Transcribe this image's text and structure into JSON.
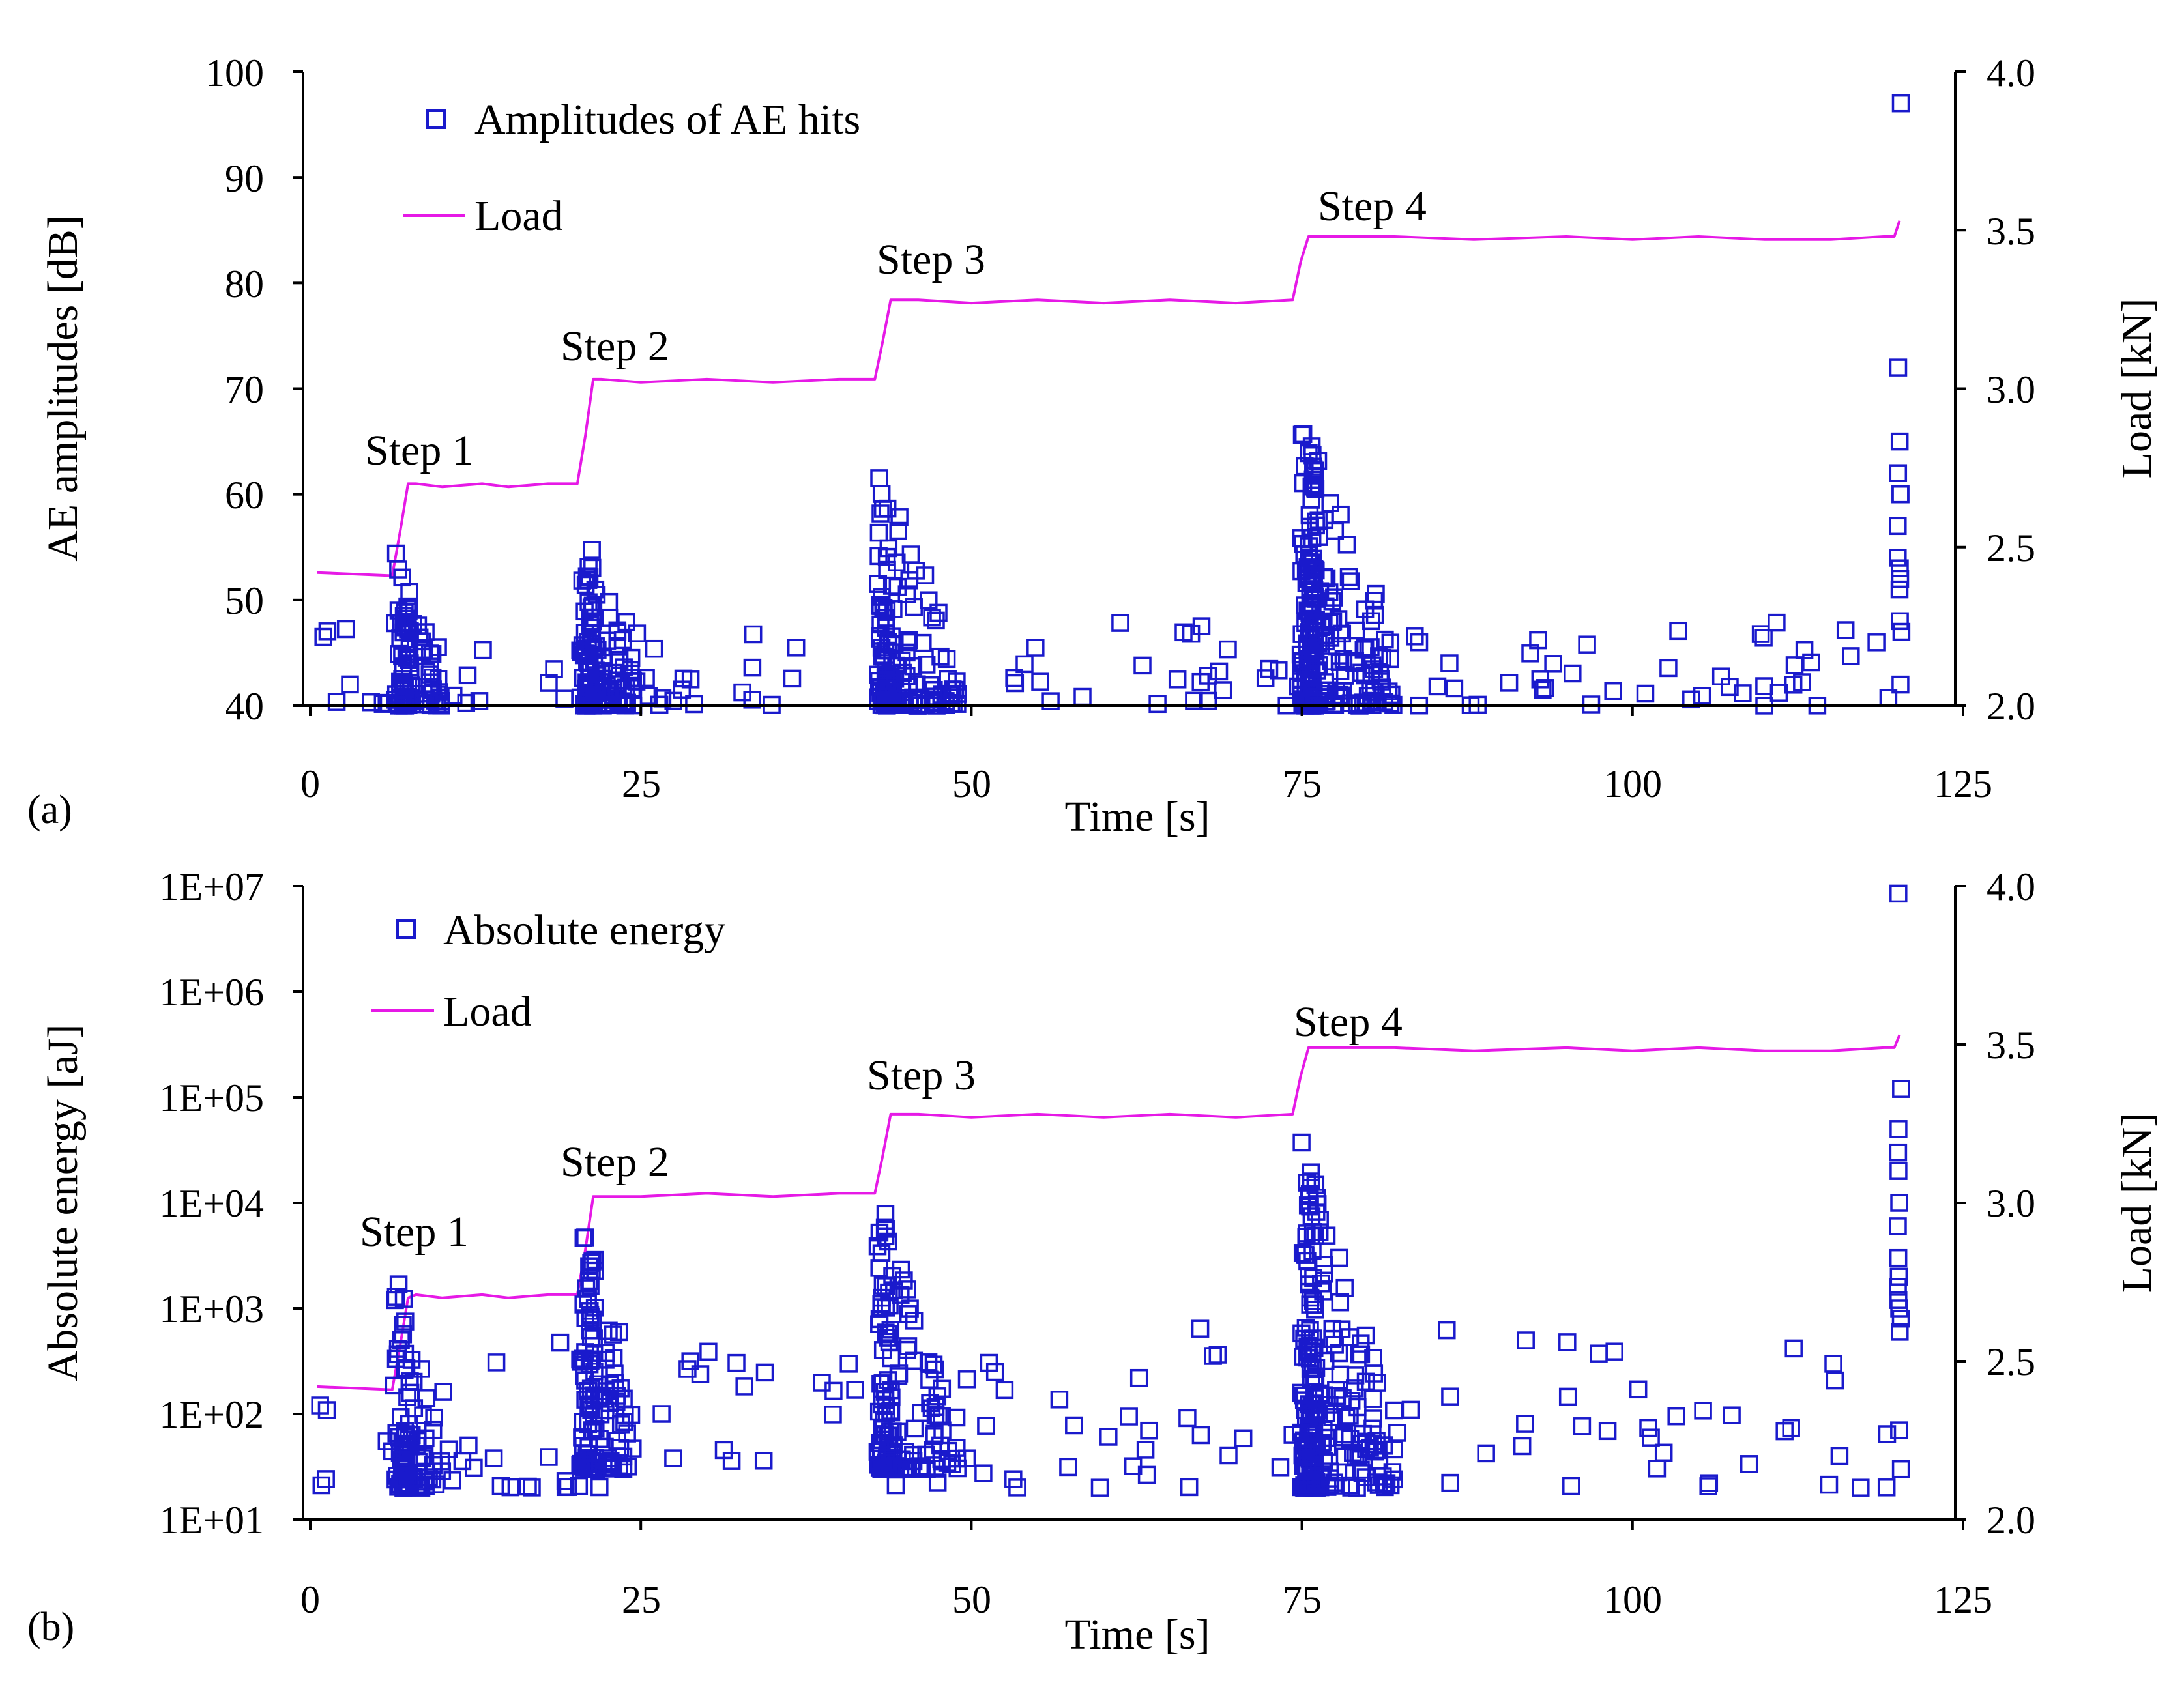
{
  "colors": {
    "marker": "#1a1acc",
    "load": "#e619e6",
    "axis": "#000000"
  },
  "chart_data": [
    {
      "type": "scatter",
      "panel_label": "(a)",
      "xlabel": "Time [s]",
      "ylabel": "AE amplitudes [dB]",
      "y2label": "Load [kN]",
      "xlim": [
        0,
        125
      ],
      "ylim": [
        40,
        100
      ],
      "y2lim": [
        2.0,
        4.0
      ],
      "yscale": "linear",
      "xticks": [
        "0",
        "25",
        "50",
        "75",
        "100",
        "125"
      ],
      "yticks": [
        "40",
        "50",
        "60",
        "70",
        "80",
        "90",
        "100"
      ],
      "y2ticks": [
        "2.0",
        "2.5",
        "3.0",
        "3.5",
        "4.0"
      ],
      "legend": [
        {
          "kind": "marker",
          "label": "Amplitudes of AE hits"
        },
        {
          "kind": "line",
          "label": "Load"
        }
      ],
      "annotations": [
        {
          "text": "Step 1",
          "x": 8.5,
          "y": 2.79
        },
        {
          "text": "Step 2",
          "x": 18.5,
          "y": 3.09
        },
        {
          "text": "Step 3",
          "x": 42,
          "y": 3.36
        },
        {
          "text": "Step 4",
          "x": 76.5,
          "y": 3.53
        }
      ],
      "load_series": {
        "name": "Load",
        "x": [
          0.5,
          6.2,
          6.8,
          7.4,
          8,
          10,
          13,
          15,
          18,
          20.2,
          20.8,
          21.4,
          22,
          25,
          30,
          35,
          40,
          42.7,
          43.3,
          43.9,
          46,
          50,
          55,
          60,
          65,
          70,
          74.3,
          74.9,
          75.5,
          78,
          82,
          88,
          95,
          100,
          105,
          110,
          115,
          119,
          119.8,
          120.2
        ],
        "y": [
          2.42,
          2.41,
          2.55,
          2.7,
          2.7,
          2.69,
          2.7,
          2.69,
          2.7,
          2.7,
          2.85,
          3.03,
          3.03,
          3.02,
          3.03,
          3.02,
          3.03,
          3.03,
          3.15,
          3.28,
          3.28,
          3.27,
          3.28,
          3.27,
          3.28,
          3.27,
          3.28,
          3.4,
          3.48,
          3.48,
          3.48,
          3.47,
          3.48,
          3.47,
          3.48,
          3.47,
          3.47,
          3.48,
          3.48,
          3.53
        ]
      },
      "hits": [
        {
          "name": "cluster_step1",
          "t_start": 6.0,
          "t_peak": 7.0,
          "t_end": 10.0,
          "count": 90,
          "y_base": 40,
          "y_peak": 53
        },
        {
          "name": "cluster_step2",
          "t_start": 20.0,
          "t_peak": 21.0,
          "t_end": 24.5,
          "count": 120,
          "y_base": 40,
          "y_peak": 56
        },
        {
          "name": "cluster_step3",
          "t_start": 42.5,
          "t_peak": 43.5,
          "t_end": 49.0,
          "count": 140,
          "y_base": 40,
          "y_peak": 61
        },
        {
          "name": "cluster_step4",
          "t_start": 74.5,
          "t_peak": 75.5,
          "t_end": 82.0,
          "count": 220,
          "y_base": 40,
          "y_peak": 66
        },
        {
          "name": "scatter_background",
          "t_start": 0.5,
          "t_end": 119.5,
          "count": 130,
          "y_min": 40,
          "y_max": 48
        },
        {
          "name": "failure_column",
          "t": 120.2,
          "values": [
            97,
            72,
            65,
            62,
            60,
            60,
            57,
            54,
            53,
            52,
            51,
            48,
            47,
            42
          ]
        }
      ]
    },
    {
      "type": "scatter",
      "panel_label": "(b)",
      "xlabel": "Time [s]",
      "ylabel": "Absolute energy [aJ]",
      "y2label": "Load [kN]",
      "xlim": [
        0,
        125
      ],
      "ylim": [
        10,
        10000000
      ],
      "y2lim": [
        2.0,
        4.0
      ],
      "yscale": "log",
      "xticks": [
        "0",
        "25",
        "50",
        "75",
        "100",
        "125"
      ],
      "yticks": [
        "1E+01",
        "1E+02",
        "1E+03",
        "1E+04",
        "1E+05",
        "1E+06",
        "1E+07"
      ],
      "y2ticks": [
        "2.0",
        "2.5",
        "3.0",
        "3.5",
        "4.0"
      ],
      "legend": [
        {
          "kind": "marker",
          "label": "Absolute energy"
        },
        {
          "kind": "line",
          "label": "Load"
        }
      ],
      "annotations": [
        {
          "text": "Step 1",
          "x": 8.0,
          "y": 2.82
        },
        {
          "text": "Step 2",
          "x": 18.0,
          "y": 3.09
        },
        {
          "text": "Step 3",
          "x": 41.0,
          "y": 3.36
        },
        {
          "text": "Step 4",
          "x": 74.5,
          "y": 3.53
        }
      ],
      "load_series": {
        "name": "Load",
        "x": [
          0.5,
          6.2,
          6.8,
          7.4,
          8,
          10,
          13,
          15,
          18,
          20.2,
          20.8,
          21.4,
          22,
          25,
          30,
          35,
          40,
          42.7,
          43.3,
          43.9,
          46,
          50,
          55,
          60,
          65,
          70,
          74.3,
          74.9,
          75.5,
          78,
          82,
          88,
          95,
          100,
          105,
          110,
          115,
          119,
          119.8,
          120.2
        ],
        "y": [
          2.42,
          2.41,
          2.55,
          2.7,
          2.71,
          2.7,
          2.71,
          2.7,
          2.71,
          2.71,
          2.85,
          3.02,
          3.02,
          3.02,
          3.03,
          3.02,
          3.03,
          3.03,
          3.15,
          3.28,
          3.28,
          3.27,
          3.28,
          3.27,
          3.28,
          3.27,
          3.28,
          3.4,
          3.49,
          3.49,
          3.49,
          3.48,
          3.49,
          3.48,
          3.49,
          3.48,
          3.48,
          3.49,
          3.49,
          3.53
        ]
      },
      "hits": [
        {
          "name": "cluster_step1",
          "t_start": 6.0,
          "t_peak": 7.0,
          "t_end": 10.0,
          "count": 90,
          "y_base": 20,
          "y_peak": 1600
        },
        {
          "name": "cluster_step2",
          "t_start": 20.0,
          "t_peak": 21.0,
          "t_end": 24.5,
          "count": 120,
          "y_base": 30,
          "y_peak": 6000
        },
        {
          "name": "cluster_step3",
          "t_start": 42.5,
          "t_peak": 43.5,
          "t_end": 49.0,
          "count": 140,
          "y_base": 30,
          "y_peak": 8000
        },
        {
          "name": "cluster_step4",
          "t_start": 74.5,
          "t_peak": 75.5,
          "t_end": 82.0,
          "count": 220,
          "y_base": 20,
          "y_peak": 25000
        },
        {
          "name": "scatter_background",
          "t_start": 0.5,
          "t_end": 119.5,
          "count": 130,
          "y_min": 20,
          "y_max": 700
        },
        {
          "name": "failure_column",
          "t": 120.2,
          "values": [
            8500000,
            120000,
            50000,
            30000,
            20000,
            10000,
            6000,
            3000,
            2000,
            1600,
            1200,
            1000,
            800,
            600,
            70,
            30
          ]
        }
      ]
    }
  ]
}
